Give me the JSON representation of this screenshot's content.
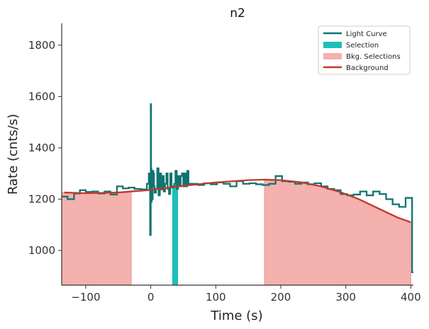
{
  "chart_data": {
    "type": "line",
    "title": "n2",
    "xlabel": "Time (s)",
    "ylabel": "Rate (cnts/s)",
    "xlim": [
      -137,
      404
    ],
    "ylim": [
      865,
      1885
    ],
    "xticks": [
      -100,
      0,
      100,
      200,
      300,
      400
    ],
    "xtick_labels": [
      "−100",
      "0",
      "100",
      "200",
      "300",
      "400"
    ],
    "yticks": [
      1000,
      1200,
      1400,
      1600,
      1800
    ],
    "ytick_labels": [
      "1000",
      "1200",
      "1400",
      "1600",
      "1800"
    ],
    "grid": false,
    "legend_position": "top-right",
    "legend": [
      {
        "label": "Light Curve",
        "kind": "line",
        "color": "#0f7570"
      },
      {
        "label": "Selection",
        "kind": "patch",
        "color": "#1fbfb8"
      },
      {
        "label": "Bkg. Selections",
        "kind": "patch",
        "color": "#f4b1ad"
      },
      {
        "label": "Background",
        "kind": "line",
        "color": "#c0392b"
      }
    ],
    "series": [
      {
        "name": "Light Curve",
        "kind": "step",
        "color": "#0f7570",
        "x": [
          -137,
          -128,
          -118,
          -109,
          -100,
          -90,
          -81,
          -71,
          -62,
          -52,
          -43,
          -34,
          -25,
          -15,
          -6,
          -3,
          -2,
          -1,
          0,
          0.5,
          1,
          1.5,
          2,
          3,
          4,
          5,
          6,
          8,
          10,
          12,
          14,
          16,
          18,
          20,
          22,
          24,
          26,
          28,
          30,
          32,
          34,
          36,
          38,
          40,
          42,
          44,
          46,
          48,
          50,
          52,
          54,
          56,
          58,
          60,
          62,
          72,
          82,
          92,
          102,
          112,
          122,
          132,
          142,
          152,
          162,
          172,
          182,
          192,
          202,
          212,
          222,
          232,
          242,
          252,
          262,
          272,
          282,
          292,
          302,
          312,
          322,
          332,
          342,
          352,
          362,
          372,
          382,
          392,
          402,
          404
        ],
        "y": [
          1210,
          1200,
          1222,
          1235,
          1228,
          1230,
          1222,
          1230,
          1218,
          1250,
          1242,
          1245,
          1240,
          1238,
          1260,
          1300,
          1235,
          1060,
          1570,
          1320,
          1190,
          1260,
          1200,
          1310,
          1300,
          1250,
          1225,
          1240,
          1320,
          1215,
          1300,
          1238,
          1290,
          1230,
          1260,
          1300,
          1240,
          1220,
          1300,
          1245,
          1250,
          1260,
          1310,
          1240,
          1290,
          1250,
          1290,
          1300,
          1250,
          1300,
          1250,
          1310,
          1260,
          1260,
          1260,
          1255,
          1262,
          1258,
          1265,
          1260,
          1250,
          1270,
          1260,
          1262,
          1258,
          1255,
          1260,
          1290,
          1270,
          1268,
          1260,
          1265,
          1258,
          1262,
          1250,
          1240,
          1235,
          1220,
          1215,
          1218,
          1230,
          1215,
          1230,
          1220,
          1200,
          1180,
          1170,
          1205,
          915,
          915
        ]
      },
      {
        "name": "Background",
        "kind": "polyline",
        "color": "#c0392b",
        "x": [
          -133,
          -100,
          -50,
          0,
          50,
          100,
          150,
          175,
          200,
          230,
          260,
          290,
          320,
          350,
          380,
          400
        ],
        "y": [
          1226,
          1223,
          1226,
          1236,
          1252,
          1265,
          1274,
          1276,
          1274,
          1266,
          1251,
          1229,
          1200,
          1164,
          1128,
          1110
        ]
      }
    ],
    "selection": [
      [
        33,
        42
      ]
    ],
    "bkg_selections": [
      [
        -137,
        -30
      ],
      [
        175,
        400
      ]
    ]
  }
}
